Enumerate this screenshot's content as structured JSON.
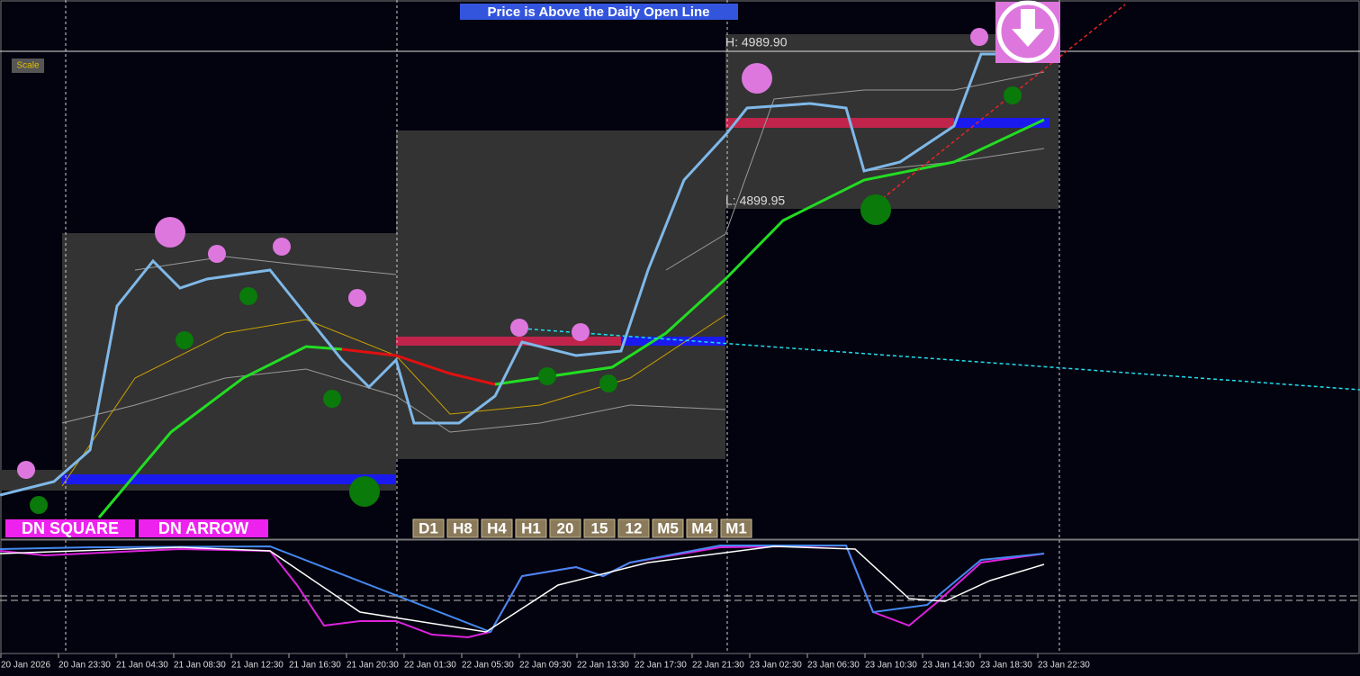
{
  "banner": "Price is Above the Daily Open Line",
  "scale_button": "Scale",
  "high_label": "H: 4989.90",
  "low_label": "L: 4899.95",
  "signal_buttons": [
    "DN SQUARE",
    "DN ARROW"
  ],
  "timeframes": [
    "D1",
    "H8",
    "H4",
    "H1",
    "20",
    "15",
    "12",
    "M5",
    "M4",
    "M1"
  ],
  "time_axis": [
    "20 Jan 2026",
    "20 Jan 23:30",
    "21 Jan 04:30",
    "21 Jan 08:30",
    "21 Jan 12:30",
    "21 Jan 16:30",
    "21 Jan 20:30",
    "22 Jan 01:30",
    "22 Jan 05:30",
    "22 Jan 09:30",
    "22 Jan 13:30",
    "22 Jan 17:30",
    "22 Jan 21:30",
    "23 Jan 02:30",
    "23 Jan 06:30",
    "23 Jan 10:30",
    "23 Jan 14:30",
    "23 Jan 18:30",
    "23 Jan 22:30"
  ]
}
